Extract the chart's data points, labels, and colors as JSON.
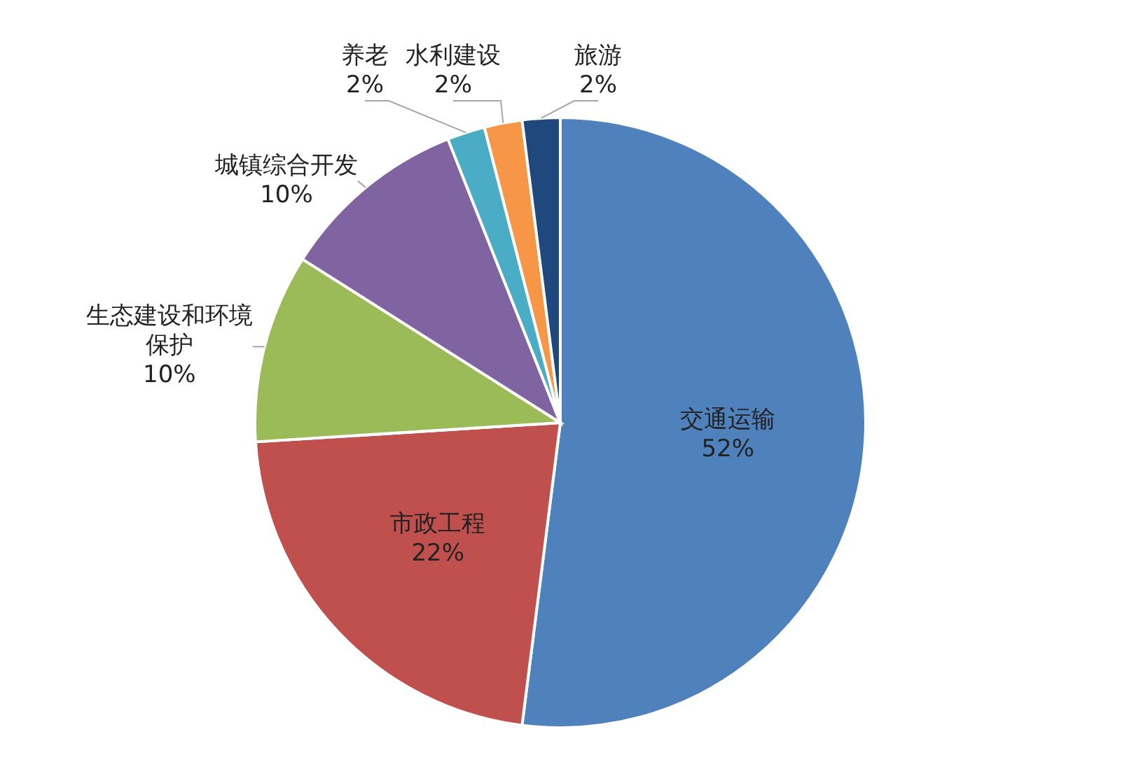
{
  "chart_data": {
    "type": "pie",
    "categories": [
      "交通运输",
      "市政工程",
      "生态建设和环境保护",
      "城镇综合开发",
      "养老",
      "水利建设",
      "旅游"
    ],
    "values": [
      52,
      22,
      10,
      10,
      2,
      2,
      2
    ],
    "colors": [
      "#4f81bd",
      "#c0504d",
      "#9bbb59",
      "#8064a2",
      "#4bacc6",
      "#f79646",
      "#1f497d"
    ],
    "value_labels": [
      "52%",
      "22%",
      "10%",
      "10%",
      "2%",
      "2%",
      "2%"
    ]
  }
}
